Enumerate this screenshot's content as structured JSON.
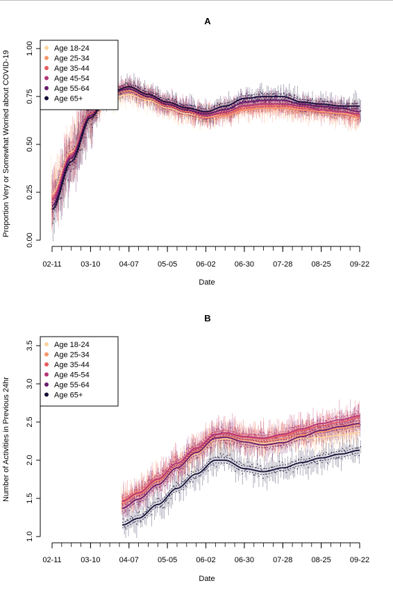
{
  "chart_data": [
    {
      "panel": "A",
      "type": "line",
      "title": "A",
      "xlabel": "Date",
      "ylabel": "Proportion Very or Somewhat Worried about COVID-19",
      "x_ticks": [
        "02-11",
        "03-10",
        "04-07",
        "05-05",
        "06-02",
        "06-30",
        "07-28",
        "08-25",
        "09-22"
      ],
      "x_tick_days": [
        0,
        28,
        56,
        84,
        112,
        140,
        168,
        196,
        224
      ],
      "y_ticks": [
        "0.00",
        "0.25",
        "0.50",
        "0.75",
        "1.00"
      ],
      "ylim": [
        0,
        1
      ],
      "legend_position": "top-left",
      "series": [
        {
          "name": "Age 18-24",
          "color": "#FDD49E",
          "x": [
            0,
            14,
            28,
            42,
            56,
            70,
            84,
            98,
            112,
            126,
            140,
            154,
            168,
            182,
            196,
            210,
            224,
            232
          ],
          "values": [
            0.24,
            0.46,
            0.64,
            0.74,
            0.76,
            0.73,
            0.69,
            0.66,
            0.64,
            0.66,
            0.69,
            0.7,
            0.7,
            0.68,
            0.67,
            0.66,
            0.65,
            0.65
          ]
        },
        {
          "name": "Age 25-34",
          "color": "#F8966A",
          "x": [
            0,
            14,
            28,
            42,
            56,
            70,
            84,
            98,
            112,
            126,
            140,
            154,
            168,
            182,
            196,
            210,
            224,
            232
          ],
          "values": [
            0.22,
            0.44,
            0.64,
            0.76,
            0.78,
            0.74,
            0.7,
            0.67,
            0.64,
            0.65,
            0.68,
            0.69,
            0.69,
            0.68,
            0.67,
            0.66,
            0.64,
            0.64
          ]
        },
        {
          "name": "Age 35-44",
          "color": "#E85D5D",
          "x": [
            0,
            14,
            28,
            42,
            56,
            70,
            84,
            98,
            112,
            126,
            140,
            154,
            168,
            182,
            196,
            210,
            224,
            232
          ],
          "values": [
            0.22,
            0.45,
            0.66,
            0.77,
            0.79,
            0.75,
            0.7,
            0.67,
            0.65,
            0.66,
            0.69,
            0.7,
            0.7,
            0.69,
            0.68,
            0.67,
            0.65,
            0.64
          ]
        },
        {
          "name": "Age 45-54",
          "color": "#B5367A",
          "x": [
            0,
            14,
            28,
            42,
            56,
            70,
            84,
            98,
            112,
            126,
            140,
            154,
            168,
            182,
            196,
            210,
            224,
            232
          ],
          "values": [
            0.21,
            0.44,
            0.65,
            0.77,
            0.79,
            0.75,
            0.71,
            0.68,
            0.65,
            0.67,
            0.7,
            0.71,
            0.71,
            0.7,
            0.68,
            0.67,
            0.66,
            0.65
          ]
        },
        {
          "name": "Age 55-64",
          "color": "#6A1B6E",
          "x": [
            0,
            14,
            28,
            42,
            56,
            70,
            84,
            98,
            112,
            126,
            140,
            154,
            168,
            182,
            196,
            210,
            224,
            232
          ],
          "values": [
            0.18,
            0.43,
            0.65,
            0.77,
            0.79,
            0.75,
            0.71,
            0.68,
            0.66,
            0.68,
            0.72,
            0.73,
            0.73,
            0.71,
            0.7,
            0.69,
            0.67,
            0.66
          ]
        },
        {
          "name": "Age 65+",
          "color": "#140E36",
          "x": [
            0,
            14,
            28,
            42,
            56,
            70,
            84,
            98,
            112,
            126,
            140,
            154,
            168,
            182,
            196,
            210,
            224,
            232
          ],
          "values": [
            0.16,
            0.41,
            0.64,
            0.77,
            0.8,
            0.76,
            0.72,
            0.69,
            0.67,
            0.7,
            0.74,
            0.75,
            0.75,
            0.72,
            0.71,
            0.7,
            0.7,
            0.7
          ]
        }
      ]
    },
    {
      "panel": "B",
      "type": "line",
      "title": "B",
      "xlabel": "Date",
      "ylabel": "Number of Activities in Previous 24hr",
      "x_ticks": [
        "02-11",
        "03-10",
        "04-07",
        "05-05",
        "06-02",
        "06-30",
        "07-28",
        "08-25",
        "09-22"
      ],
      "x_tick_days": [
        0,
        28,
        56,
        84,
        112,
        140,
        168,
        196,
        224
      ],
      "y_ticks": [
        "1.0",
        "1.5",
        "2.0",
        "2.5",
        "3.0",
        "3.5"
      ],
      "ylim": [
        1,
        3.5
      ],
      "legend_position": "top-left",
      "series": [
        {
          "name": "Age 18-24",
          "color": "#FDD49E",
          "x": [
            51,
            63,
            77,
            91,
            105,
            119,
            126,
            140,
            154,
            168,
            182,
            196,
            210,
            224,
            232
          ],
          "values": [
            1.46,
            1.56,
            1.72,
            1.9,
            2.08,
            2.26,
            2.28,
            2.25,
            2.22,
            2.25,
            2.28,
            2.3,
            2.33,
            2.36,
            2.37
          ]
        },
        {
          "name": "Age 25-34",
          "color": "#F8966A",
          "x": [
            51,
            63,
            77,
            91,
            105,
            119,
            126,
            140,
            154,
            168,
            182,
            196,
            210,
            224,
            232
          ],
          "values": [
            1.45,
            1.56,
            1.73,
            1.93,
            2.12,
            2.3,
            2.31,
            2.27,
            2.24,
            2.28,
            2.33,
            2.37,
            2.42,
            2.47,
            2.49
          ]
        },
        {
          "name": "Age 35-44",
          "color": "#E85D5D",
          "x": [
            51,
            63,
            77,
            91,
            105,
            119,
            126,
            140,
            154,
            168,
            182,
            196,
            210,
            224,
            232
          ],
          "values": [
            1.47,
            1.58,
            1.76,
            1.96,
            2.15,
            2.33,
            2.35,
            2.3,
            2.28,
            2.32,
            2.39,
            2.45,
            2.5,
            2.56,
            2.58
          ]
        },
        {
          "name": "Age 45-54",
          "color": "#B5367A",
          "x": [
            51,
            63,
            77,
            91,
            105,
            119,
            126,
            140,
            154,
            168,
            182,
            196,
            210,
            224,
            232
          ],
          "values": [
            1.46,
            1.57,
            1.75,
            1.96,
            2.16,
            2.34,
            2.36,
            2.31,
            2.29,
            2.34,
            2.41,
            2.48,
            2.53,
            2.58,
            2.61
          ]
        },
        {
          "name": "Age 55-64",
          "color": "#6A1B6E",
          "x": [
            51,
            63,
            77,
            91,
            105,
            119,
            126,
            140,
            154,
            168,
            182,
            196,
            210,
            224,
            232
          ],
          "values": [
            1.37,
            1.49,
            1.68,
            1.9,
            2.1,
            2.29,
            2.3,
            2.24,
            2.2,
            2.23,
            2.31,
            2.39,
            2.44,
            2.48,
            2.5
          ]
        },
        {
          "name": "Age 65+",
          "color": "#140E36",
          "x": [
            51,
            63,
            77,
            91,
            105,
            119,
            126,
            140,
            154,
            168,
            182,
            196,
            210,
            224,
            232
          ],
          "values": [
            1.15,
            1.24,
            1.42,
            1.63,
            1.82,
            2.0,
            2.0,
            1.89,
            1.85,
            1.9,
            1.97,
            2.03,
            2.08,
            2.13,
            2.16
          ]
        }
      ]
    }
  ]
}
